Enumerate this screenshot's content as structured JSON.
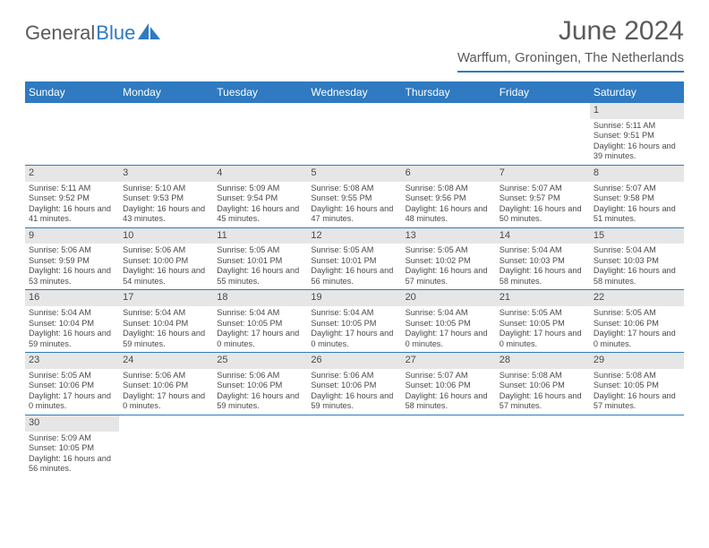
{
  "logo": {
    "text1": "General",
    "text2": "Blue"
  },
  "title": "June 2024",
  "location": "Warffum, Groningen, The Netherlands",
  "colors": {
    "accent": "#2f7ac0",
    "header_text": "#ffffff",
    "body_text": "#5a5a5a",
    "daynum_bg": "#e6e6e6"
  },
  "day_headers": [
    "Sunday",
    "Monday",
    "Tuesday",
    "Wednesday",
    "Thursday",
    "Friday",
    "Saturday"
  ],
  "weeks": [
    [
      null,
      null,
      null,
      null,
      null,
      null,
      {
        "n": "1",
        "sr": "5:11 AM",
        "ss": "9:51 PM",
        "dl": "16 hours and 39 minutes."
      }
    ],
    [
      {
        "n": "2",
        "sr": "5:11 AM",
        "ss": "9:52 PM",
        "dl": "16 hours and 41 minutes."
      },
      {
        "n": "3",
        "sr": "5:10 AM",
        "ss": "9:53 PM",
        "dl": "16 hours and 43 minutes."
      },
      {
        "n": "4",
        "sr": "5:09 AM",
        "ss": "9:54 PM",
        "dl": "16 hours and 45 minutes."
      },
      {
        "n": "5",
        "sr": "5:08 AM",
        "ss": "9:55 PM",
        "dl": "16 hours and 47 minutes."
      },
      {
        "n": "6",
        "sr": "5:08 AM",
        "ss": "9:56 PM",
        "dl": "16 hours and 48 minutes."
      },
      {
        "n": "7",
        "sr": "5:07 AM",
        "ss": "9:57 PM",
        "dl": "16 hours and 50 minutes."
      },
      {
        "n": "8",
        "sr": "5:07 AM",
        "ss": "9:58 PM",
        "dl": "16 hours and 51 minutes."
      }
    ],
    [
      {
        "n": "9",
        "sr": "5:06 AM",
        "ss": "9:59 PM",
        "dl": "16 hours and 53 minutes."
      },
      {
        "n": "10",
        "sr": "5:06 AM",
        "ss": "10:00 PM",
        "dl": "16 hours and 54 minutes."
      },
      {
        "n": "11",
        "sr": "5:05 AM",
        "ss": "10:01 PM",
        "dl": "16 hours and 55 minutes."
      },
      {
        "n": "12",
        "sr": "5:05 AM",
        "ss": "10:01 PM",
        "dl": "16 hours and 56 minutes."
      },
      {
        "n": "13",
        "sr": "5:05 AM",
        "ss": "10:02 PM",
        "dl": "16 hours and 57 minutes."
      },
      {
        "n": "14",
        "sr": "5:04 AM",
        "ss": "10:03 PM",
        "dl": "16 hours and 58 minutes."
      },
      {
        "n": "15",
        "sr": "5:04 AM",
        "ss": "10:03 PM",
        "dl": "16 hours and 58 minutes."
      }
    ],
    [
      {
        "n": "16",
        "sr": "5:04 AM",
        "ss": "10:04 PM",
        "dl": "16 hours and 59 minutes."
      },
      {
        "n": "17",
        "sr": "5:04 AM",
        "ss": "10:04 PM",
        "dl": "16 hours and 59 minutes."
      },
      {
        "n": "18",
        "sr": "5:04 AM",
        "ss": "10:05 PM",
        "dl": "17 hours and 0 minutes."
      },
      {
        "n": "19",
        "sr": "5:04 AM",
        "ss": "10:05 PM",
        "dl": "17 hours and 0 minutes."
      },
      {
        "n": "20",
        "sr": "5:04 AM",
        "ss": "10:05 PM",
        "dl": "17 hours and 0 minutes."
      },
      {
        "n": "21",
        "sr": "5:05 AM",
        "ss": "10:05 PM",
        "dl": "17 hours and 0 minutes."
      },
      {
        "n": "22",
        "sr": "5:05 AM",
        "ss": "10:06 PM",
        "dl": "17 hours and 0 minutes."
      }
    ],
    [
      {
        "n": "23",
        "sr": "5:05 AM",
        "ss": "10:06 PM",
        "dl": "17 hours and 0 minutes."
      },
      {
        "n": "24",
        "sr": "5:06 AM",
        "ss": "10:06 PM",
        "dl": "17 hours and 0 minutes."
      },
      {
        "n": "25",
        "sr": "5:06 AM",
        "ss": "10:06 PM",
        "dl": "16 hours and 59 minutes."
      },
      {
        "n": "26",
        "sr": "5:06 AM",
        "ss": "10:06 PM",
        "dl": "16 hours and 59 minutes."
      },
      {
        "n": "27",
        "sr": "5:07 AM",
        "ss": "10:06 PM",
        "dl": "16 hours and 58 minutes."
      },
      {
        "n": "28",
        "sr": "5:08 AM",
        "ss": "10:06 PM",
        "dl": "16 hours and 57 minutes."
      },
      {
        "n": "29",
        "sr": "5:08 AM",
        "ss": "10:05 PM",
        "dl": "16 hours and 57 minutes."
      }
    ],
    [
      {
        "n": "30",
        "sr": "5:09 AM",
        "ss": "10:05 PM",
        "dl": "16 hours and 56 minutes."
      },
      null,
      null,
      null,
      null,
      null,
      null
    ]
  ],
  "labels": {
    "sunrise": "Sunrise:",
    "sunset": "Sunset:",
    "daylight": "Daylight:"
  }
}
